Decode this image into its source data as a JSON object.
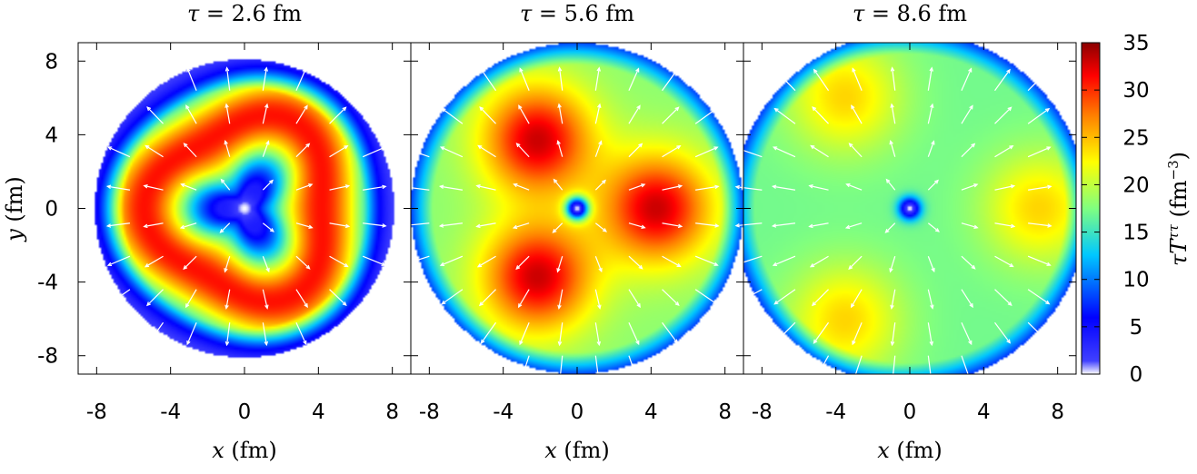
{
  "chart_data": {
    "type": "heatmap",
    "panels": [
      {
        "title_var": "τ",
        "title_eq": " = ",
        "title_val": "2.6",
        "title_unit": " fm",
        "xlabel_var": "x",
        "xlabel_unit": " (fm)",
        "ylabel_var": "y",
        "ylabel_unit": " (fm)",
        "shape": "ring",
        "r_edge": 8.1,
        "r_peak": 4.8,
        "peak_value": 31,
        "center_value": 0
      },
      {
        "title_var": "τ",
        "title_eq": " = ",
        "title_val": "5.6",
        "title_unit": " fm",
        "xlabel_var": "x",
        "xlabel_unit": " (fm)",
        "shape": "lobes",
        "r_edge": 9.0,
        "lobes_deg": [
          0,
          120,
          240
        ],
        "r_peak": 4.3,
        "peak_value": 33,
        "center_value": 0
      },
      {
        "title_var": "τ",
        "title_eq": " = ",
        "title_val": "8.6",
        "title_unit": " fm",
        "xlabel_var": "x",
        "xlabel_unit": " (fm)",
        "shape": "lobes",
        "r_edge": 9.6,
        "lobes_deg": [
          0,
          120,
          240
        ],
        "r_peak": 7.0,
        "peak_value": 24,
        "center_value": 0
      }
    ],
    "x_ticks": [
      "-8",
      "-4",
      "0",
      "4",
      "8"
    ],
    "y_ticks": [
      "8",
      "4",
      "0",
      "-4",
      "-8"
    ],
    "xlim": [
      -9,
      9
    ],
    "ylim": [
      -9,
      9
    ],
    "colorbar": {
      "ticks": [
        "35",
        "30",
        "25",
        "20",
        "15",
        "10",
        "5",
        "0"
      ],
      "range": [
        0,
        35
      ],
      "label_main": "τT",
      "label_sup": "ττ",
      "label_unit_open": " (fm",
      "label_unit_sup": "−3",
      "label_unit_close": ")",
      "colors": [
        "#ffffff",
        "#0000ff",
        "#00c8ff",
        "#80ff80",
        "#ffff00",
        "#ff8000",
        "#ff0000",
        "#8b0000"
      ]
    },
    "overlay": "white flow-velocity arrows, radially outward"
  }
}
